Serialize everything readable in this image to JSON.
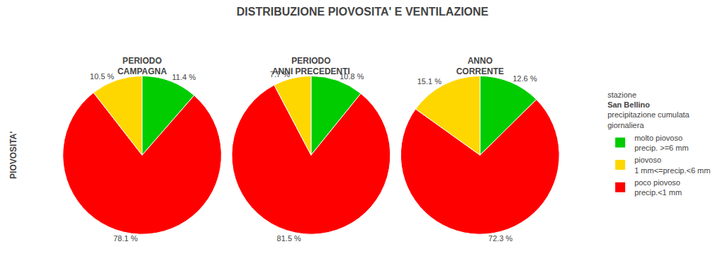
{
  "chart_data": {
    "type": "pie",
    "title": "DISTRIBUZIONE PIOVOSITA' E VENTILAZIONE",
    "ylabel": "PIOVOSITA'",
    "legend": "right",
    "legend_title": [
      "stazione",
      "San Bellino",
      "precipitazione cumulata",
      "giornaliera"
    ],
    "series": [
      {
        "name": "molto piovoso\nprecip. >=6 mm",
        "color": "#00CC00"
      },
      {
        "name": "piovoso\n1 mm<=precip.<6 mm",
        "color": "#FFD700"
      },
      {
        "name": "poco piovoso\nprecip.<1 mm",
        "color": "#FF0000"
      }
    ],
    "charts": [
      {
        "title": "PERIODO\nCAMPAGNA",
        "values": [
          11.4,
          78.1,
          10.5
        ],
        "value_labels": [
          "11.4 %",
          "78.1 %",
          "10.5 %"
        ],
        "colors": [
          "#00CC00",
          "#FF0000",
          "#FFD700"
        ],
        "data_labels": true
      },
      {
        "title": "PERIODO\nANNI PRECEDENTI",
        "values": [
          10.8,
          81.5,
          7.7
        ],
        "value_labels": [
          "10.8 %",
          "81.5 %",
          "7.7 %"
        ],
        "colors": [
          "#00CC00",
          "#FF0000",
          "#FFD700"
        ],
        "data_labels": true
      },
      {
        "title": "ANNO\nCORRENTE",
        "values": [
          12.6,
          72.3,
          15.1
        ],
        "value_labels": [
          "12.6 %",
          "72.3 %",
          "15.1 %"
        ],
        "colors": [
          "#00CC00",
          "#FF0000",
          "#FFD700"
        ],
        "data_labels": true
      }
    ]
  }
}
